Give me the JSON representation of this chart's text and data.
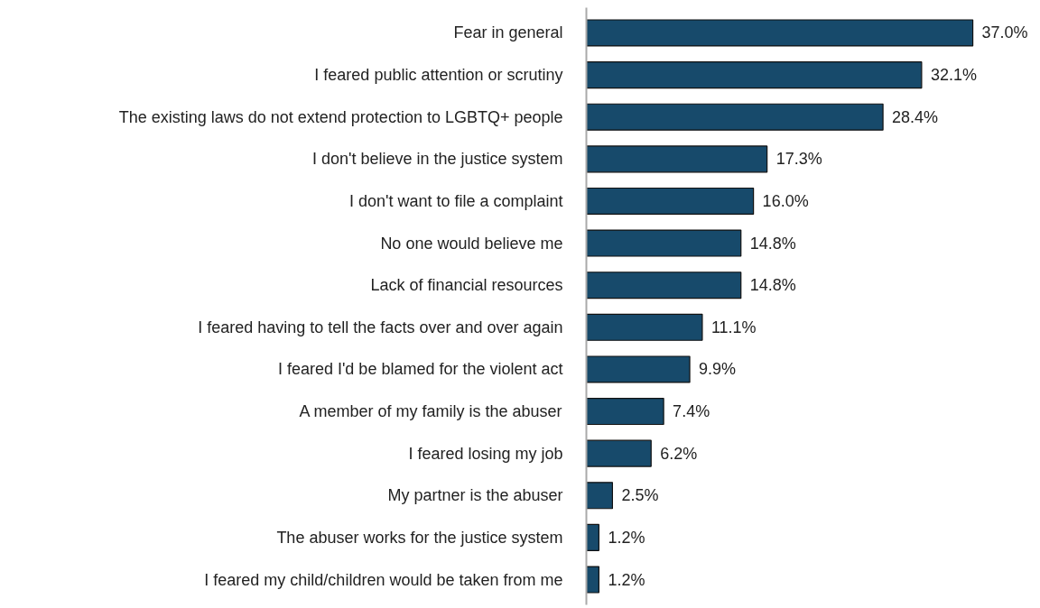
{
  "chart_data": {
    "type": "bar",
    "orientation": "horizontal",
    "categories": [
      "Fear in general",
      "I feared public attention or scrutiny",
      "The existing laws do not extend protection to LGBTQ+ people",
      "I don't believe in the justice system",
      "I don't want to file a complaint",
      "No one would believe me",
      "Lack of financial resources",
      "I feared having to tell the facts over and over again",
      "I feared I'd be blamed for the violent act",
      "A member of my family is the abuser",
      "I feared losing my job",
      "My partner is the abuser",
      "The abuser works for the justice system",
      "I feared my child/children would be taken from me"
    ],
    "values": [
      37.0,
      32.1,
      28.4,
      17.3,
      16.0,
      14.8,
      14.8,
      11.1,
      9.9,
      7.4,
      6.2,
      2.5,
      1.2,
      1.2
    ],
    "value_labels": [
      "37.0%",
      "32.1%",
      "28.4%",
      "17.3%",
      "16.0%",
      "14.8%",
      "14.8%",
      "11.1%",
      "9.9%",
      "7.4%",
      "6.2%",
      "2.5%",
      "1.2%",
      "1.2%"
    ],
    "color": "#174a6b",
    "grid": false,
    "tick_labels": "y"
  }
}
